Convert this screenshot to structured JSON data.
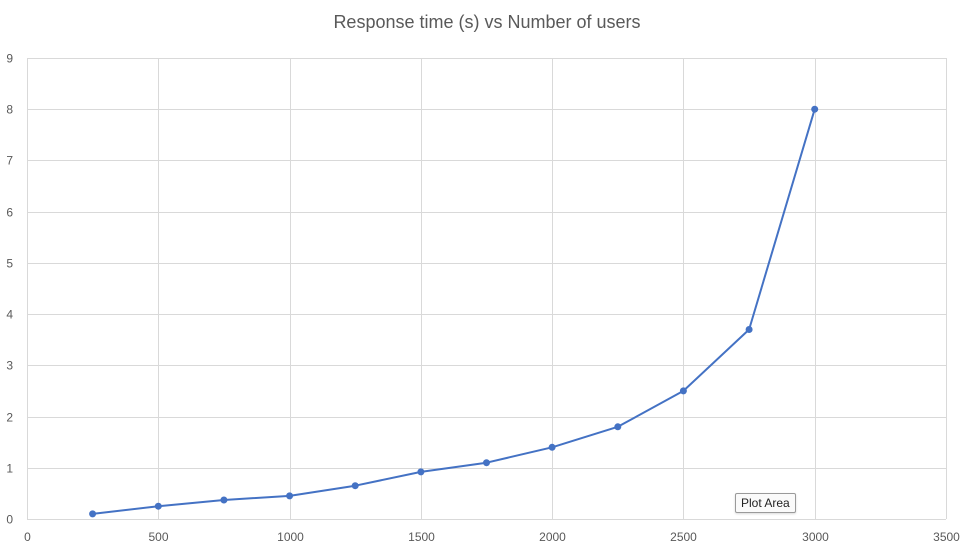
{
  "chart_data": {
    "type": "line",
    "title": "Response time (s) vs Number of users",
    "xlabel": "",
    "ylabel": "",
    "xlim": [
      0,
      3500
    ],
    "ylim": [
      0,
      9
    ],
    "x_ticks": [
      0,
      500,
      1000,
      1500,
      2000,
      2500,
      3000,
      3500
    ],
    "y_ticks": [
      0,
      1,
      2,
      3,
      4,
      5,
      6,
      7,
      8,
      9
    ],
    "grid": true,
    "legend": "none",
    "series": [
      {
        "name": "Response time (s)",
        "color": "#4472C4",
        "x": [
          250,
          500,
          750,
          1000,
          1250,
          1500,
          1750,
          2000,
          2250,
          2500,
          2750,
          3000
        ],
        "y": [
          0.1,
          0.25,
          0.37,
          0.45,
          0.65,
          0.92,
          1.1,
          1.4,
          1.8,
          2.5,
          3.7,
          8.0
        ]
      }
    ]
  },
  "tooltip": {
    "label": "Plot Area"
  },
  "colors": {
    "grid": "#d9d9d9",
    "axis_text": "#595959"
  }
}
